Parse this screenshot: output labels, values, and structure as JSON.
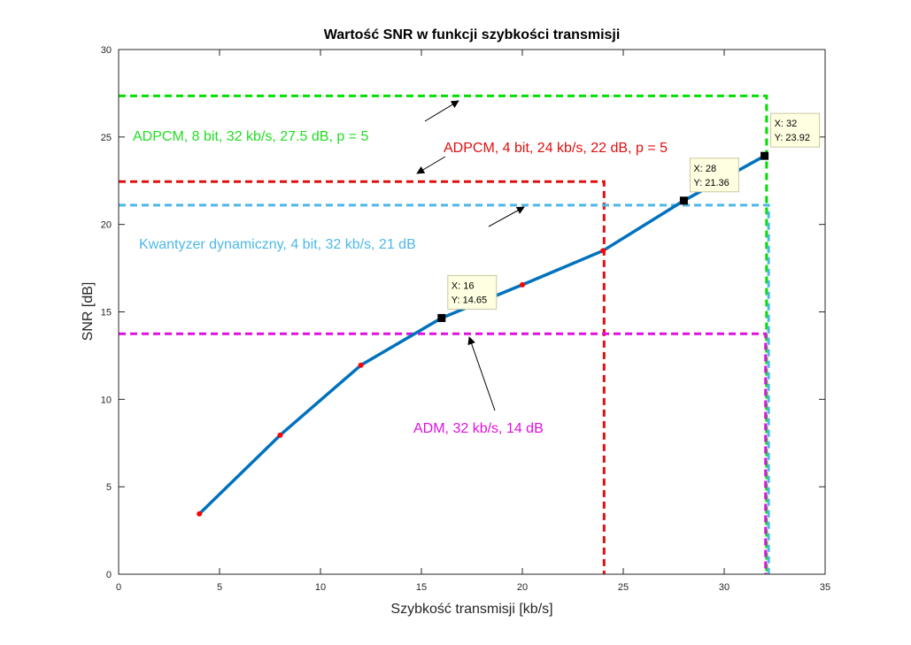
{
  "chart_data": {
    "type": "line",
    "title": "Wartość SNR w funkcji szybkości transmisji",
    "xlabel": "Szybkość transmisji [kb/s]",
    "ylabel": "SNR [dB]",
    "xlim": [
      0,
      35
    ],
    "ylim": [
      0,
      30
    ],
    "xticks": [
      0,
      5,
      10,
      15,
      20,
      25,
      30,
      35
    ],
    "yticks": [
      0,
      5,
      10,
      15,
      20,
      25,
      30
    ],
    "grid": false,
    "series": [
      {
        "color": "#0072bd",
        "x": [
          4,
          8,
          12,
          16,
          20,
          24,
          28,
          32
        ],
        "y": [
          3.45,
          7.95,
          11.95,
          14.65,
          16.55,
          18.5,
          21.36,
          23.92
        ]
      }
    ],
    "reference_lines": [
      {
        "color": "#00e000",
        "snr": 27.35,
        "rate": 32.1
      },
      {
        "color": "#e01010",
        "snr": 22.45,
        "rate": 24.05
      },
      {
        "color": "#4db8e8",
        "snr": 21.1,
        "rate": 32.2
      },
      {
        "color": "#e010e0",
        "snr": 13.75,
        "rate": 32.05
      }
    ],
    "annotations": [
      {
        "text": "ADPCM, 8 bit, 32 kb/s, 27.5 dB, p = 5",
        "color": "#22dd22"
      },
      {
        "text": "ADPCM, 4 bit, 24 kb/s, 22 dB, p = 5",
        "color": "#e01010"
      },
      {
        "text": "Kwantyzer dynamiczny, 4 bit, 32 kb/s, 21 dB",
        "color": "#4db8e8"
      },
      {
        "text": "ADM, 32 kb/s, 14 dB",
        "color": "#e010e0"
      }
    ],
    "datatips": [
      {
        "x_label": "X: 16",
        "y_label": "Y: 14.65",
        "x": 16,
        "y": 14.65
      },
      {
        "x_label": "X: 28",
        "y_label": "Y: 21.36",
        "x": 28,
        "y": 21.36
      },
      {
        "x_label": "X: 32",
        "y_label": "Y: 23.92",
        "x": 32,
        "y": 23.92
      }
    ]
  }
}
